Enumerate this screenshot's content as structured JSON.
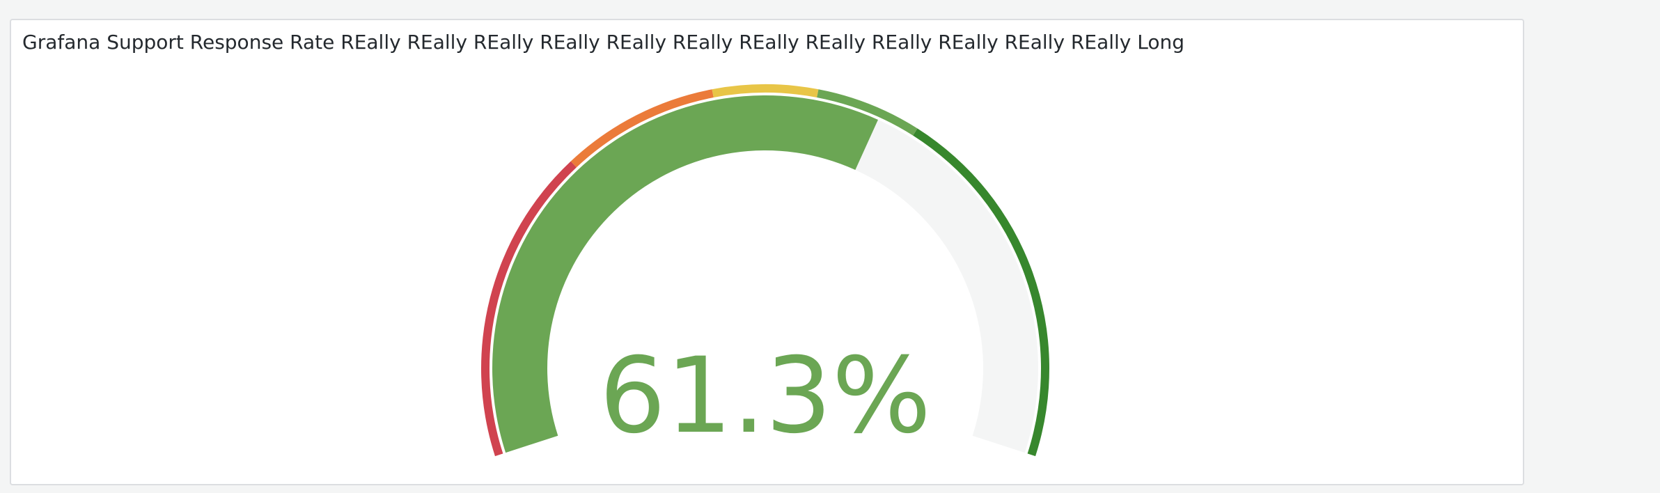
{
  "chart_data": {
    "type": "gauge",
    "title": "Grafana Support Response Rate REally REally REally REally REally REally REally REally REally REally REally REally Long",
    "values": [
      61.3
    ],
    "value_labels": [
      "61.3%"
    ],
    "color": "#6ba654",
    "ylim": [
      0,
      100
    ],
    "thresholds": [
      {
        "value": 0,
        "color": "#d0434f"
      },
      {
        "value": 30,
        "color": "#eb7b3a"
      },
      {
        "value": 45,
        "color": "#e8c547"
      },
      {
        "value": 55,
        "color": "#6ba654"
      },
      {
        "value": 65,
        "color": "#37872d"
      }
    ]
  }
}
